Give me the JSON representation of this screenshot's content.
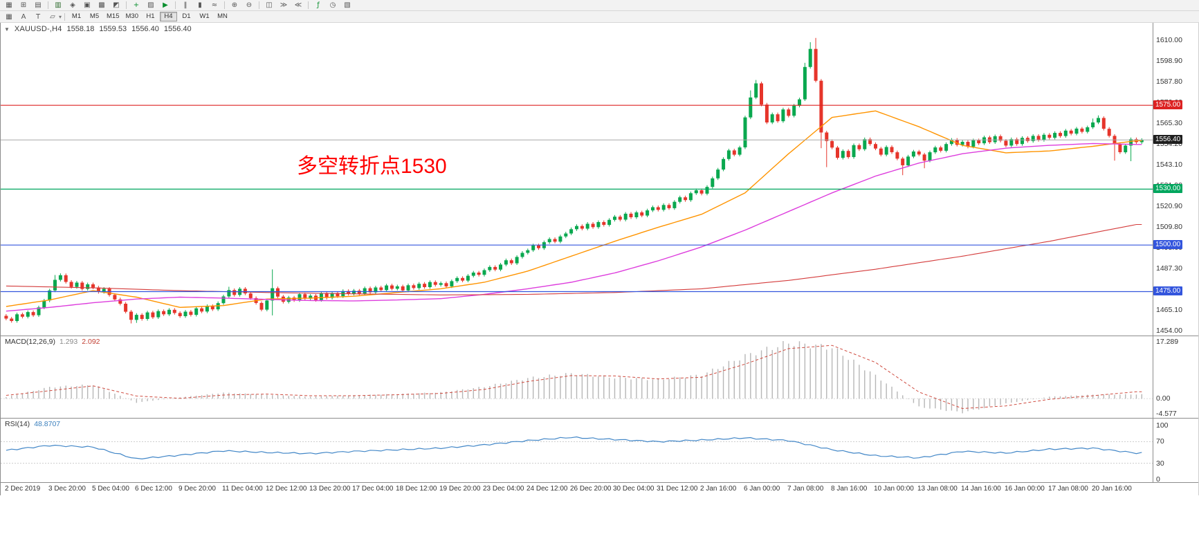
{
  "toolbar1": {
    "icons": [
      {
        "name": "window-menu",
        "glyph": "▦"
      },
      {
        "name": "new-chart",
        "glyph": "⊞"
      },
      {
        "name": "chart-profiles",
        "glyph": "▤"
      },
      {
        "sep": true
      },
      {
        "name": "market-watch",
        "glyph": "▥",
        "color": "#2d6a2d"
      },
      {
        "name": "data-window",
        "glyph": "◈"
      },
      {
        "name": "navigator",
        "glyph": "▣"
      },
      {
        "name": "terminal",
        "glyph": "▩"
      },
      {
        "name": "strategy-tester",
        "glyph": "◩"
      },
      {
        "sep": true
      },
      {
        "name": "new-order",
        "glyph": "+",
        "color": "#0b8f2f"
      },
      {
        "name": "metaeditor",
        "glyph": "▨"
      },
      {
        "name": "autotrading",
        "glyph": "▶",
        "color": "#0b8f2f"
      },
      {
        "sep": true
      },
      {
        "name": "bar-chart-type",
        "glyph": "‖"
      },
      {
        "name": "candle-chart-type",
        "glyph": "▮"
      },
      {
        "name": "line-chart-type",
        "glyph": "≈"
      },
      {
        "sep": true
      },
      {
        "name": "zoom-in",
        "glyph": "⊕"
      },
      {
        "name": "zoom-out",
        "glyph": "⊖"
      },
      {
        "sep": true
      },
      {
        "name": "tile-windows",
        "glyph": "◫"
      },
      {
        "name": "auto-scroll",
        "glyph": "≫"
      },
      {
        "name": "chart-shift",
        "glyph": "≪"
      },
      {
        "sep": true
      },
      {
        "name": "indicators",
        "glyph": "ƒ",
        "color": "#0b8f2f"
      },
      {
        "name": "periods",
        "glyph": "◷"
      },
      {
        "name": "templates",
        "glyph": "▧"
      }
    ]
  },
  "toolbar2": {
    "tools": [
      {
        "name": "grid-tool",
        "glyph": "▦"
      },
      {
        "name": "text-label-tool",
        "glyph": "A"
      },
      {
        "name": "text-tool",
        "glyph": "T"
      },
      {
        "name": "shapes-tool",
        "glyph": "▱",
        "dropdown": true
      }
    ],
    "timeframes": [
      "M1",
      "M5",
      "M15",
      "M30",
      "H1",
      "H4",
      "D1",
      "W1",
      "MN"
    ],
    "active": "H4"
  },
  "chart": {
    "menu_arrow": "▼",
    "symbol_header": "XAUUSD-,H4",
    "ohlc": {
      "open": "1558.18",
      "high": "1559.53",
      "low": "1556.40",
      "close": "1556.40"
    },
    "annotation": {
      "text": "多空转折点1530",
      "color": "#ff0000"
    },
    "hlines": [
      {
        "price": 1575.0,
        "label": "1575.00",
        "color": "#dd2222"
      },
      {
        "price": 1530.0,
        "label": "1530.00",
        "color": "#00a65e"
      },
      {
        "price": 1500.0,
        "label": "1500.00",
        "color": "#3355dd"
      },
      {
        "price": 1475.0,
        "label": "1475.00",
        "color": "#3355dd"
      }
    ],
    "bid": {
      "price": 1556.4,
      "label": "1556.40",
      "line_color": "#a8a8a8",
      "badge_color": "#1f1f1f"
    }
  },
  "colors": {
    "up": "#0aa84f",
    "down": "#e6352b",
    "macd_hist": "#b6b6b6",
    "macd_signal": "#cf4a3e",
    "rsi": "#4186c7"
  },
  "chart_data": {
    "type": "candlestick",
    "symbol": "XAUUSD-",
    "timeframe": "H4",
    "price_axis": {
      "ticks": [
        "1610.00",
        "1598.90",
        "1587.80",
        "1576.60",
        "1565.30",
        "1554.20",
        "1543.10",
        "1531.90",
        "1520.90",
        "1509.80",
        "1498.60",
        "1487.30",
        "1476.20",
        "1465.10",
        "1454.00"
      ]
    },
    "candles": {
      "first_open": 1462.0,
      "default_wick": 0.9,
      "closes": [
        1460.5,
        1459.2,
        1462.8,
        1461.5,
        1464.0,
        1462.3,
        1466.5,
        1470.2,
        1475.6,
        1481.3,
        1483.8,
        1480.2,
        1477.5,
        1479.8,
        1476.4,
        1478.9,
        1477.2,
        1474.8,
        1476.5,
        1473.2,
        1470.8,
        1468.5,
        1464.2,
        1459.8,
        1462.5,
        1460.3,
        1463.8,
        1461.2,
        1464.5,
        1462.8,
        1465.2,
        1463.5,
        1461.8,
        1464.2,
        1462.5,
        1466.0,
        1464.3,
        1467.2,
        1465.5,
        1468.8,
        1472.4,
        1475.8,
        1473.2,
        1476.5,
        1474.0,
        1471.5,
        1468.9,
        1465.3,
        1470.2,
        1476.8,
        1472.3,
        1469.5,
        1471.8,
        1470.4,
        1473.6,
        1471.2,
        1472.8,
        1470.5,
        1473.9,
        1471.6,
        1474.2,
        1472.5,
        1475.3,
        1473.8,
        1475.5,
        1473.9,
        1476.8,
        1474.6,
        1477.2,
        1475.8,
        1478.3,
        1476.5,
        1477.8,
        1475.6,
        1478.4,
        1476.9,
        1479.2,
        1477.4,
        1480.1,
        1478.6,
        1479.5,
        1477.8,
        1480.6,
        1482.3,
        1480.9,
        1483.5,
        1485.2,
        1484.0,
        1486.5,
        1488.2,
        1486.8,
        1489.5,
        1491.8,
        1490.2,
        1493.6,
        1495.8,
        1497.2,
        1499.8,
        1498.3,
        1501.5,
        1503.2,
        1501.8,
        1504.6,
        1506.2,
        1508.5,
        1510.2,
        1508.8,
        1511.4,
        1509.6,
        1512.3,
        1510.8,
        1513.5,
        1515.2,
        1513.6,
        1516.8,
        1514.9,
        1517.5,
        1515.8,
        1518.6,
        1520.3,
        1518.9,
        1521.5,
        1519.8,
        1523.2,
        1525.6,
        1524.1,
        1527.8,
        1529.4,
        1527.6,
        1531.2,
        1535.8,
        1540.5,
        1546.2,
        1550.8,
        1548.5,
        1552.4,
        1568.5,
        1579.2,
        1586.8,
        1575.4,
        1565.8,
        1570.2,
        1566.5,
        1572.8,
        1569.4,
        1574.8,
        1578.2,
        1595.6,
        1605.3,
        1588.2,
        1560.4,
        1555.8,
        1552.3,
        1546.8,
        1550.5,
        1547.2,
        1553.6,
        1551.4,
        1556.8,
        1554.2,
        1551.8,
        1548.5,
        1552.6,
        1549.8,
        1546.4,
        1542.8,
        1547.5,
        1550.2,
        1548.6,
        1545.3,
        1549.8,
        1552.4,
        1550.6,
        1554.2,
        1556.5,
        1553.8,
        1555.4,
        1552.8,
        1556.2,
        1554.6,
        1557.8,
        1555.2,
        1558.4,
        1556.0,
        1553.4,
        1556.8,
        1554.2,
        1557.5,
        1555.8,
        1558.6,
        1556.4,
        1559.2,
        1557.6,
        1560.2,
        1558.5,
        1561.4,
        1559.8,
        1562.5,
        1560.8,
        1563.2,
        1565.8,
        1568.2,
        1562.4,
        1558.6,
        1554.2,
        1549.8,
        1553.4,
        1556.8,
        1555.2,
        1556.4
      ],
      "high_overrides": {
        "9": 1483.9,
        "10": 1484.8,
        "41": 1477.6,
        "49": 1486.9,
        "137": 1583.0,
        "138": 1588.6,
        "147": 1597.8,
        "148": 1608.9,
        "149": 1611.2,
        "200": 1567.9,
        "201": 1569.6
      },
      "low_overrides": {
        "23": 1457.9,
        "24": 1458.2,
        "49": 1462.2,
        "150": 1552.0,
        "151": 1541.8,
        "165": 1537.5,
        "169": 1541.2,
        "204": 1545.3,
        "207": 1545.0
      }
    },
    "moving_averages": [
      {
        "name": "ma-fast",
        "color": "#ff9400",
        "step": 8,
        "values": [
          1467.0,
          1470.5,
          1475.5,
          1472.0,
          1466.5,
          1467.5,
          1471.0,
          1471.5,
          1472.5,
          1474.5,
          1476.5,
          1480.0,
          1486.0,
          1494.0,
          1502.0,
          1509.5,
          1516.5,
          1528.0,
          1549.0,
          1568.5,
          1572.0,
          1563.5,
          1553.5,
          1549.5,
          1550.5,
          1553.0,
          1556.0
        ]
      },
      {
        "name": "ma-mid",
        "color": "#dd3ddd",
        "step": 8,
        "values": [
          1464.5,
          1466.5,
          1469.0,
          1471.0,
          1472.0,
          1471.5,
          1470.8,
          1470.2,
          1470.0,
          1470.5,
          1471.2,
          1473.5,
          1476.5,
          1480.0,
          1485.0,
          1491.5,
          1499.0,
          1508.0,
          1518.0,
          1528.0,
          1537.0,
          1544.0,
          1549.0,
          1552.0,
          1553.5,
          1554.5,
          1554.0
        ]
      },
      {
        "name": "ma-slow",
        "color": "#d43b3b",
        "step": 16,
        "values": [
          1478.0,
          1477.0,
          1475.5,
          1474.5,
          1473.8,
          1473.2,
          1473.5,
          1474.5,
          1476.5,
          1481.0,
          1487.0,
          1494.0,
          1502.0,
          1511.0
        ]
      }
    ],
    "macd": {
      "label": "MACD(12,26,9)",
      "main_value": "1.293",
      "signal_value": "2.092",
      "range": {
        "max": 17.289,
        "min": -4.577
      },
      "scale": [
        "17.289",
        "0.00",
        "-4.577"
      ],
      "step": 8,
      "histogram": [
        0.5,
        3.5,
        4.2,
        -1.2,
        0.4,
        1.8,
        1.2,
        0.6,
        1.0,
        1.4,
        1.9,
        3.6,
        6.2,
        7.6,
        6.4,
        5.8,
        7.2,
        13.0,
        17.0,
        15.5,
        7.0,
        -2.5,
        -4.2,
        -1.5,
        0.6,
        1.2,
        1.3
      ],
      "signal": [
        1.0,
        2.4,
        3.9,
        0.8,
        0.1,
        1.1,
        1.4,
        0.9,
        0.9,
        1.2,
        1.6,
        2.8,
        5.2,
        7.0,
        6.9,
        6.0,
        6.5,
        10.5,
        15.2,
        16.2,
        11.0,
        2.0,
        -3.0,
        -2.2,
        -0.2,
        0.9,
        2.1
      ]
    },
    "rsi": {
      "label": "RSI(14)",
      "value": "48.8707",
      "scale": [
        "100",
        "70",
        "30",
        "0"
      ],
      "levels": [
        70,
        30
      ],
      "step": 8,
      "values": [
        54,
        63,
        60,
        38,
        45,
        53,
        50,
        48,
        52,
        55,
        58,
        64,
        72,
        78,
        74,
        70,
        73,
        77,
        72,
        55,
        44,
        40,
        52,
        49,
        56,
        58,
        48.9
      ]
    },
    "time_step": 8,
    "time_axis": [
      "2 Dec 2019",
      "3 Dec 20:00",
      "5 Dec 04:00",
      "6 Dec 12:00",
      "9 Dec 20:00",
      "11 Dec 04:00",
      "12 Dec 12:00",
      "13 Dec 20:00",
      "17 Dec 04:00",
      "18 Dec 12:00",
      "19 Dec 20:00",
      "23 Dec 04:00",
      "24 Dec 12:00",
      "26 Dec 20:00",
      "30 Dec 04:00",
      "31 Dec 12:00",
      "2 Jan 16:00",
      "6 Jan 00:00",
      "7 Jan 08:00",
      "8 Jan 16:00",
      "10 Jan 00:00",
      "13 Jan 08:00",
      "14 Jan 16:00",
      "16 Jan 00:00",
      "17 Jan 08:00",
      "20 Jan 16:00"
    ]
  }
}
